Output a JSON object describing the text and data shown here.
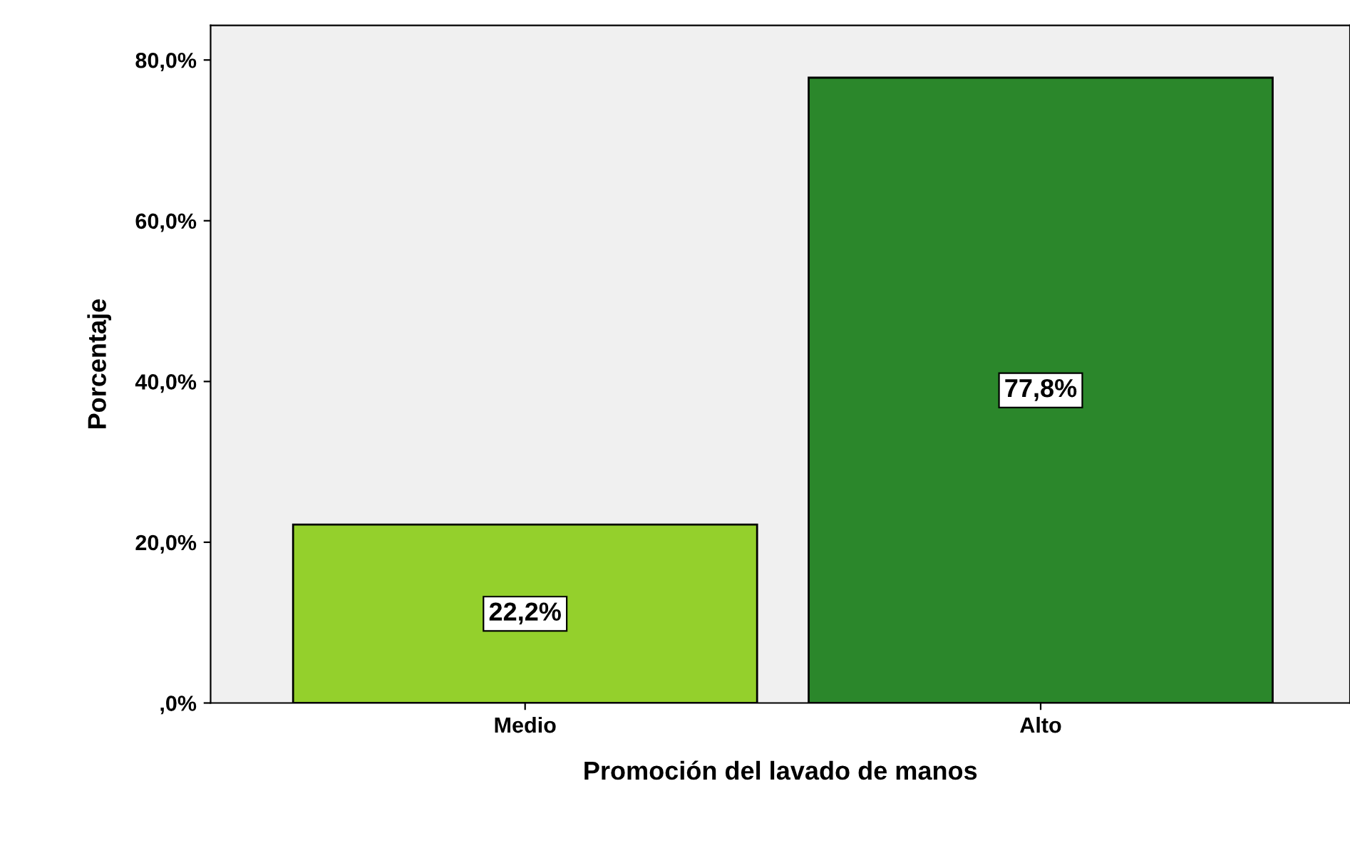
{
  "chart_data": {
    "type": "bar",
    "xlabel": "Promoción del lavado de manos",
    "ylabel": "Porcentaje",
    "categories": [
      "Medio",
      "Alto"
    ],
    "values": [
      22.2,
      77.8
    ],
    "colors": [
      "#94d02c",
      "#2b872b"
    ],
    "value_labels": [
      "22,2%",
      "77,8%"
    ],
    "ylim": [
      0,
      84.3
    ],
    "yticks": [
      {
        "value": 0,
        "label": ",0%"
      },
      {
        "value": 20,
        "label": "20,0%"
      },
      {
        "value": 40,
        "label": "40,0%"
      },
      {
        "value": 60,
        "label": "60,0%"
      },
      {
        "value": 80,
        "label": "80,0%"
      }
    ],
    "grid": false,
    "legend": false
  }
}
